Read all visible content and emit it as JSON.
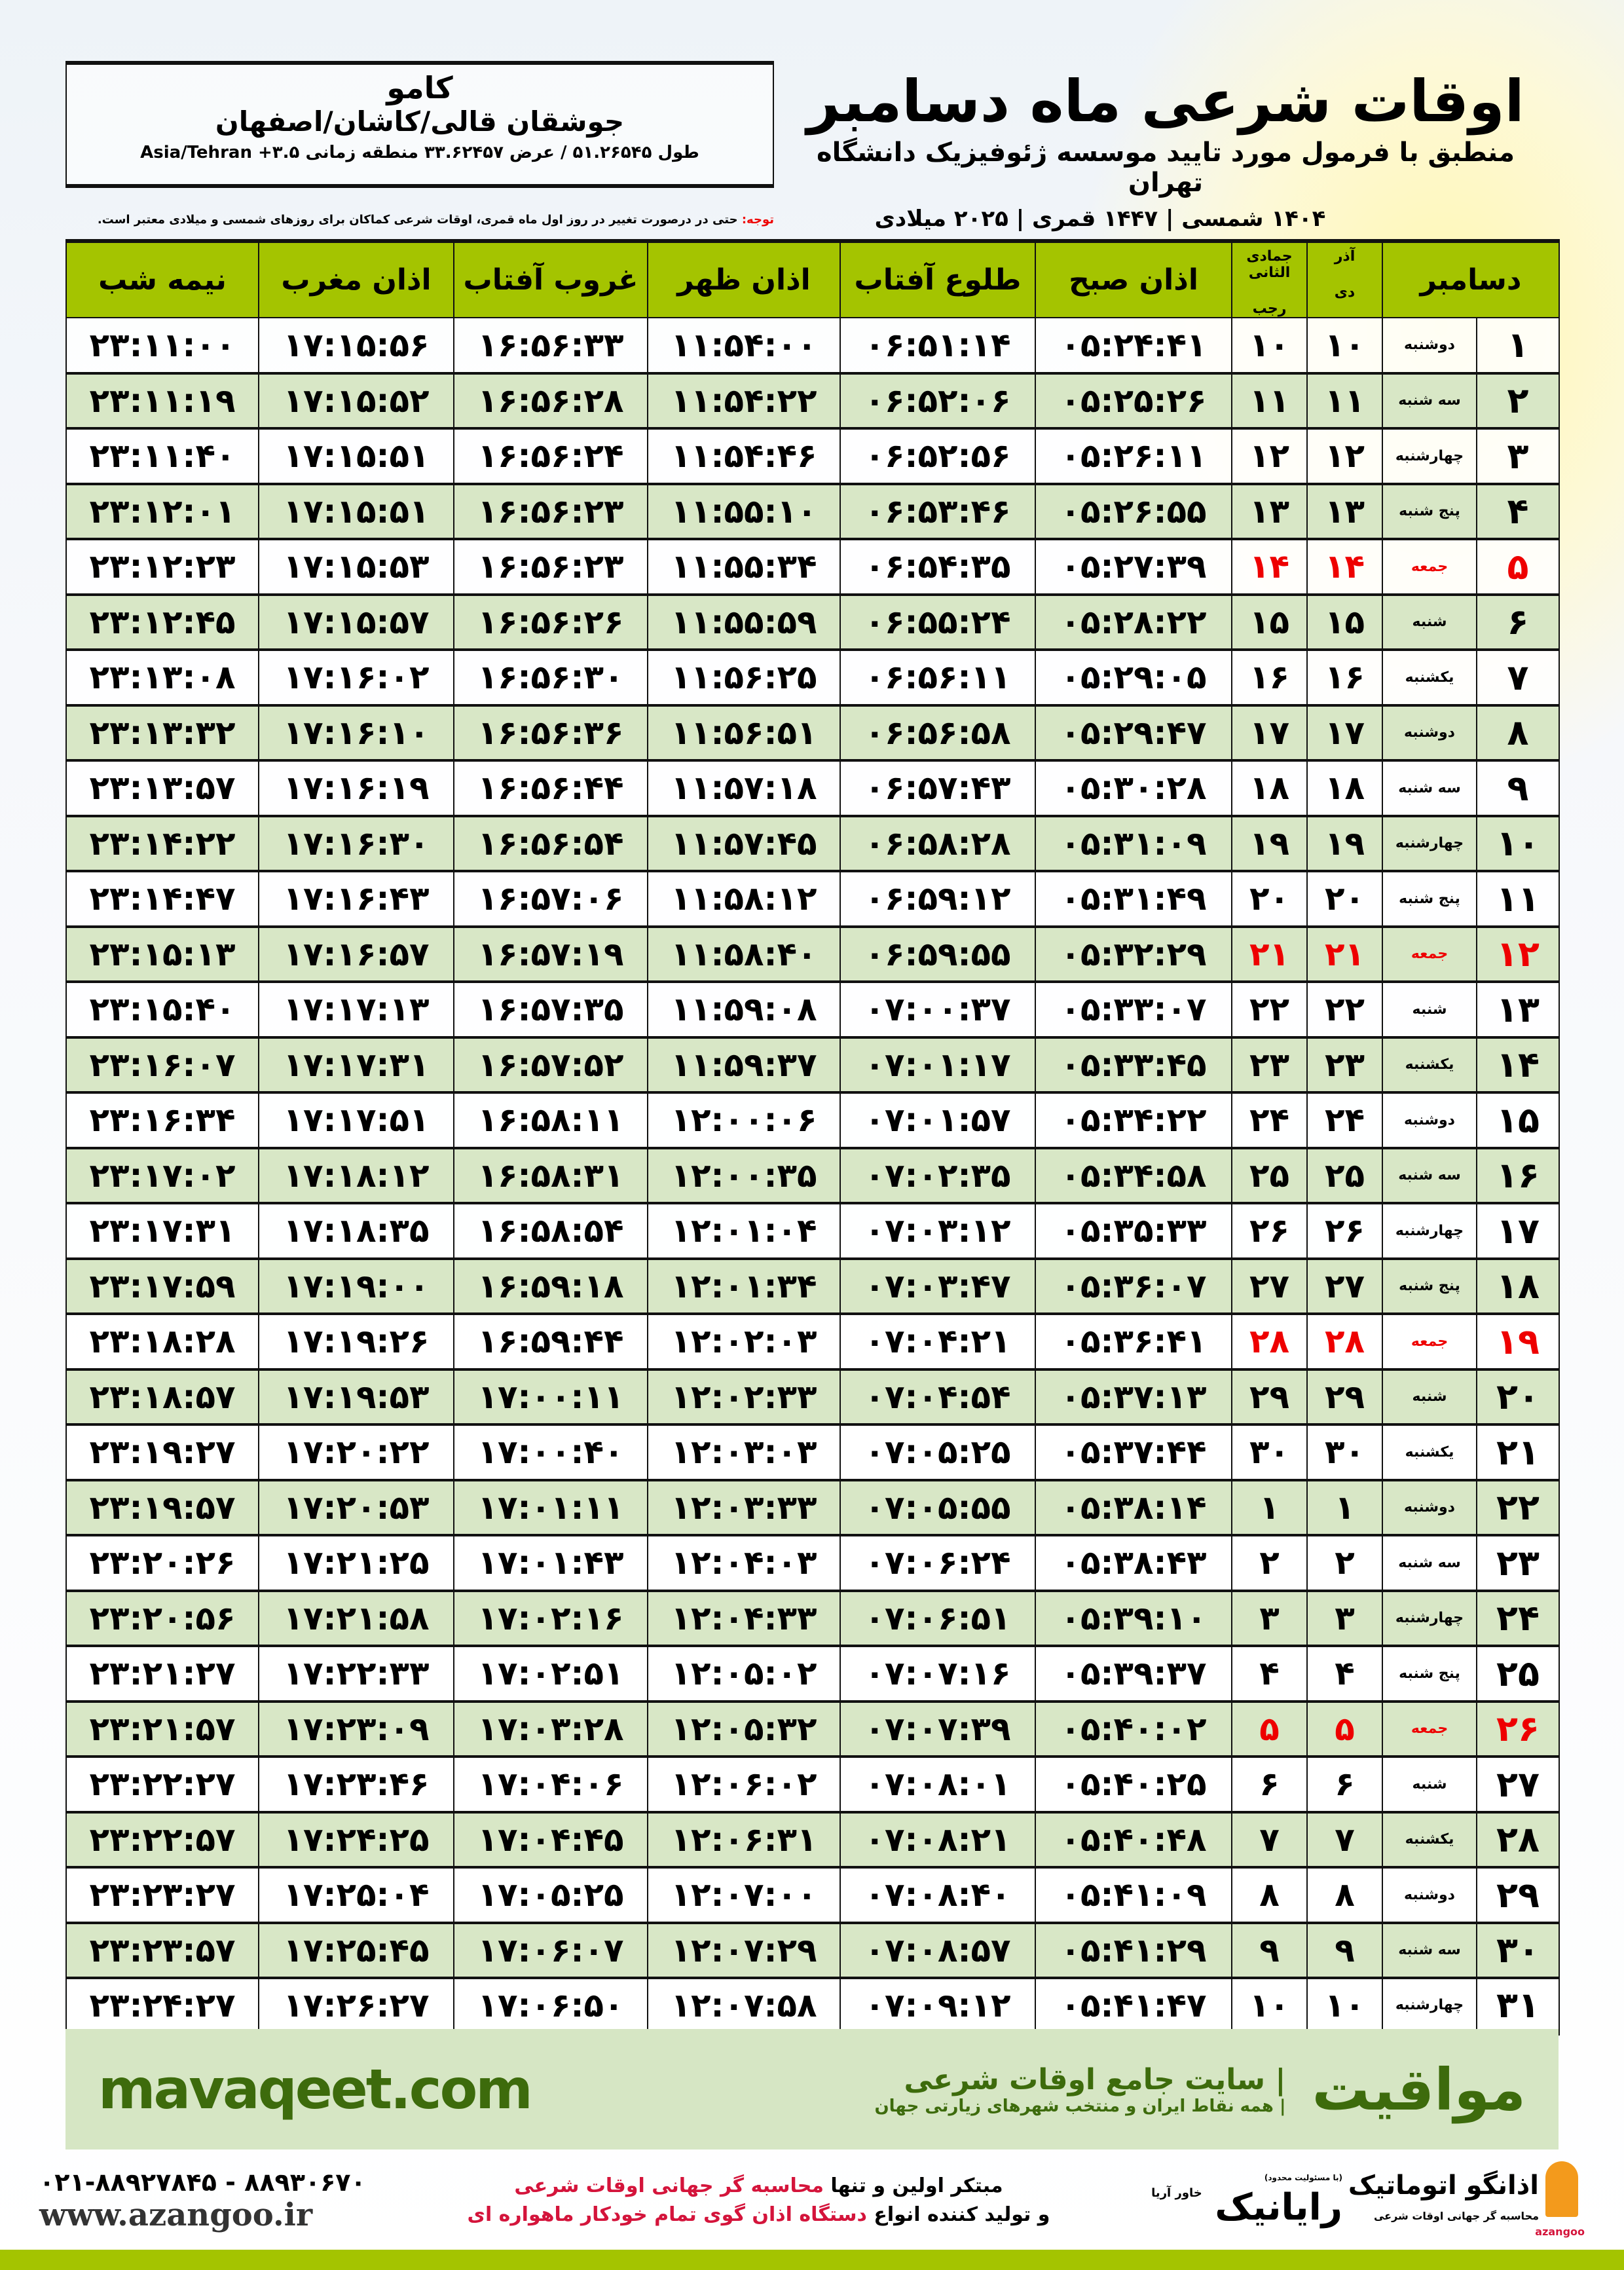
{
  "location": {
    "city": "کامو",
    "region": "جوشقان قالی/کاشان/اصفهان",
    "coords": "طول ۵۱.۲۶۵۴۵ / عرض ۳۳.۶۲۴۵۷ منطقه زمانی ۳.۵+ Asia/Tehran"
  },
  "header": {
    "title": "اوقات شرعی ماه دسامبر",
    "subtitle": "منطبق با فرمول مورد تایید موسسه ژئوفیزیک دانشگاه تهران",
    "years": "۱۴۰۴ شمسی | ۱۴۴۷ قمری | ۲۰۲۵ میلادی"
  },
  "note": {
    "label": "توجه:",
    "text": " حتی در درصورت تغییر در روز اول ماه قمری، اوقات شرعی کماکان برای روزهای شمسی و میلادی معتبر است."
  },
  "columns": {
    "month": "دسامبر",
    "shamsi_top": "آذر",
    "shamsi_bottom": "دی",
    "qamari_top": "جمادی الثانی",
    "qamari_bottom": "رجب",
    "sobh": "اذان صبح",
    "tolu": "طلوع آفتاب",
    "zohr": "اذان ظهر",
    "ghorub": "غروب آفتاب",
    "maghreb": "اذان مغرب",
    "nimeshab": "نیمه شب"
  },
  "colors": {
    "header_green": "#a4c400",
    "row_alt": "#d8e7c6",
    "friday": "#e00000",
    "band": "#d6e6c4",
    "band_text": "#3d6b0c"
  },
  "rows": [
    [
      "۱",
      "دوشنبه",
      "۱۰",
      "۱۰",
      "۰۵:۲۴:۴۱",
      "۰۶:۵۱:۱۴",
      "۱۱:۵۴:۰۰",
      "۱۶:۵۶:۳۳",
      "۱۷:۱۵:۵۶",
      "۲۳:۱۱:۰۰"
    ],
    [
      "۲",
      "سه شنبه",
      "۱۱",
      "۱۱",
      "۰۵:۲۵:۲۶",
      "۰۶:۵۲:۰۶",
      "۱۱:۵۴:۲۲",
      "۱۶:۵۶:۲۸",
      "۱۷:۱۵:۵۲",
      "۲۳:۱۱:۱۹"
    ],
    [
      "۳",
      "چهارشنبه",
      "۱۲",
      "۱۲",
      "۰۵:۲۶:۱۱",
      "۰۶:۵۲:۵۶",
      "۱۱:۵۴:۴۶",
      "۱۶:۵۶:۲۴",
      "۱۷:۱۵:۵۱",
      "۲۳:۱۱:۴۰"
    ],
    [
      "۴",
      "پنج شنبه",
      "۱۳",
      "۱۳",
      "۰۵:۲۶:۵۵",
      "۰۶:۵۳:۴۶",
      "۱۱:۵۵:۱۰",
      "۱۶:۵۶:۲۳",
      "۱۷:۱۵:۵۱",
      "۲۳:۱۲:۰۱"
    ],
    [
      "۵",
      "جمعه",
      "۱۴",
      "۱۴",
      "۰۵:۲۷:۳۹",
      "۰۶:۵۴:۳۵",
      "۱۱:۵۵:۳۴",
      "۱۶:۵۶:۲۳",
      "۱۷:۱۵:۵۳",
      "۲۳:۱۲:۲۳"
    ],
    [
      "۶",
      "شنبه",
      "۱۵",
      "۱۵",
      "۰۵:۲۸:۲۲",
      "۰۶:۵۵:۲۴",
      "۱۱:۵۵:۵۹",
      "۱۶:۵۶:۲۶",
      "۱۷:۱۵:۵۷",
      "۲۳:۱۲:۴۵"
    ],
    [
      "۷",
      "یکشنبه",
      "۱۶",
      "۱۶",
      "۰۵:۲۹:۰۵",
      "۰۶:۵۶:۱۱",
      "۱۱:۵۶:۲۵",
      "۱۶:۵۶:۳۰",
      "۱۷:۱۶:۰۲",
      "۲۳:۱۳:۰۸"
    ],
    [
      "۸",
      "دوشنبه",
      "۱۷",
      "۱۷",
      "۰۵:۲۹:۴۷",
      "۰۶:۵۶:۵۸",
      "۱۱:۵۶:۵۱",
      "۱۶:۵۶:۳۶",
      "۱۷:۱۶:۱۰",
      "۲۳:۱۳:۳۲"
    ],
    [
      "۹",
      "سه شنبه",
      "۱۸",
      "۱۸",
      "۰۵:۳۰:۲۸",
      "۰۶:۵۷:۴۳",
      "۱۱:۵۷:۱۸",
      "۱۶:۵۶:۴۴",
      "۱۷:۱۶:۱۹",
      "۲۳:۱۳:۵۷"
    ],
    [
      "۱۰",
      "چهارشنبه",
      "۱۹",
      "۱۹",
      "۰۵:۳۱:۰۹",
      "۰۶:۵۸:۲۸",
      "۱۱:۵۷:۴۵",
      "۱۶:۵۶:۵۴",
      "۱۷:۱۶:۳۰",
      "۲۳:۱۴:۲۲"
    ],
    [
      "۱۱",
      "پنج شنبه",
      "۲۰",
      "۲۰",
      "۰۵:۳۱:۴۹",
      "۰۶:۵۹:۱۲",
      "۱۱:۵۸:۱۲",
      "۱۶:۵۷:۰۶",
      "۱۷:۱۶:۴۳",
      "۲۳:۱۴:۴۷"
    ],
    [
      "۱۲",
      "جمعه",
      "۲۱",
      "۲۱",
      "۰۵:۳۲:۲۹",
      "۰۶:۵۹:۵۵",
      "۱۱:۵۸:۴۰",
      "۱۶:۵۷:۱۹",
      "۱۷:۱۶:۵۷",
      "۲۳:۱۵:۱۳"
    ],
    [
      "۱۳",
      "شنبه",
      "۲۲",
      "۲۲",
      "۰۵:۳۳:۰۷",
      "۰۷:۰۰:۳۷",
      "۱۱:۵۹:۰۸",
      "۱۶:۵۷:۳۵",
      "۱۷:۱۷:۱۳",
      "۲۳:۱۵:۴۰"
    ],
    [
      "۱۴",
      "یکشنبه",
      "۲۳",
      "۲۳",
      "۰۵:۳۳:۴۵",
      "۰۷:۰۱:۱۷",
      "۱۱:۵۹:۳۷",
      "۱۶:۵۷:۵۲",
      "۱۷:۱۷:۳۱",
      "۲۳:۱۶:۰۷"
    ],
    [
      "۱۵",
      "دوشنبه",
      "۲۴",
      "۲۴",
      "۰۵:۳۴:۲۲",
      "۰۷:۰۱:۵۷",
      "۱۲:۰۰:۰۶",
      "۱۶:۵۸:۱۱",
      "۱۷:۱۷:۵۱",
      "۲۳:۱۶:۳۴"
    ],
    [
      "۱۶",
      "سه شنبه",
      "۲۵",
      "۲۵",
      "۰۵:۳۴:۵۸",
      "۰۷:۰۲:۳۵",
      "۱۲:۰۰:۳۵",
      "۱۶:۵۸:۳۱",
      "۱۷:۱۸:۱۲",
      "۲۳:۱۷:۰۲"
    ],
    [
      "۱۷",
      "چهارشنبه",
      "۲۶",
      "۲۶",
      "۰۵:۳۵:۳۳",
      "۰۷:۰۳:۱۲",
      "۱۲:۰۱:۰۴",
      "۱۶:۵۸:۵۴",
      "۱۷:۱۸:۳۵",
      "۲۳:۱۷:۳۱"
    ],
    [
      "۱۸",
      "پنج شنبه",
      "۲۷",
      "۲۷",
      "۰۵:۳۶:۰۷",
      "۰۷:۰۳:۴۷",
      "۱۲:۰۱:۳۴",
      "۱۶:۵۹:۱۸",
      "۱۷:۱۹:۰۰",
      "۲۳:۱۷:۵۹"
    ],
    [
      "۱۹",
      "جمعه",
      "۲۸",
      "۲۸",
      "۰۵:۳۶:۴۱",
      "۰۷:۰۴:۲۱",
      "۱۲:۰۲:۰۳",
      "۱۶:۵۹:۴۴",
      "۱۷:۱۹:۲۶",
      "۲۳:۱۸:۲۸"
    ],
    [
      "۲۰",
      "شنبه",
      "۲۹",
      "۲۹",
      "۰۵:۳۷:۱۳",
      "۰۷:۰۴:۵۴",
      "۱۲:۰۲:۳۳",
      "۱۷:۰۰:۱۱",
      "۱۷:۱۹:۵۳",
      "۲۳:۱۸:۵۷"
    ],
    [
      "۲۱",
      "یکشنبه",
      "۳۰",
      "۳۰",
      "۰۵:۳۷:۴۴",
      "۰۷:۰۵:۲۵",
      "۱۲:۰۳:۰۳",
      "۱۷:۰۰:۴۰",
      "۱۷:۲۰:۲۲",
      "۲۳:۱۹:۲۷"
    ],
    [
      "۲۲",
      "دوشنبه",
      "۱",
      "۱",
      "۰۵:۳۸:۱۴",
      "۰۷:۰۵:۵۵",
      "۱۲:۰۳:۳۳",
      "۱۷:۰۱:۱۱",
      "۱۷:۲۰:۵۳",
      "۲۳:۱۹:۵۷"
    ],
    [
      "۲۳",
      "سه شنبه",
      "۲",
      "۲",
      "۰۵:۳۸:۴۳",
      "۰۷:۰۶:۲۴",
      "۱۲:۰۴:۰۳",
      "۱۷:۰۱:۴۳",
      "۱۷:۲۱:۲۵",
      "۲۳:۲۰:۲۶"
    ],
    [
      "۲۴",
      "چهارشنبه",
      "۳",
      "۳",
      "۰۵:۳۹:۱۰",
      "۰۷:۰۶:۵۱",
      "۱۲:۰۴:۳۳",
      "۱۷:۰۲:۱۶",
      "۱۷:۲۱:۵۸",
      "۲۳:۲۰:۵۶"
    ],
    [
      "۲۵",
      "پنج شنبه",
      "۴",
      "۴",
      "۰۵:۳۹:۳۷",
      "۰۷:۰۷:۱۶",
      "۱۲:۰۵:۰۲",
      "۱۷:۰۲:۵۱",
      "۱۷:۲۲:۳۳",
      "۲۳:۲۱:۲۷"
    ],
    [
      "۲۶",
      "جمعه",
      "۵",
      "۵",
      "۰۵:۴۰:۰۲",
      "۰۷:۰۷:۳۹",
      "۱۲:۰۵:۳۲",
      "۱۷:۰۳:۲۸",
      "۱۷:۲۳:۰۹",
      "۲۳:۲۱:۵۷"
    ],
    [
      "۲۷",
      "شنبه",
      "۶",
      "۶",
      "۰۵:۴۰:۲۵",
      "۰۷:۰۸:۰۱",
      "۱۲:۰۶:۰۲",
      "۱۷:۰۴:۰۶",
      "۱۷:۲۳:۴۶",
      "۲۳:۲۲:۲۷"
    ],
    [
      "۲۸",
      "یکشنبه",
      "۷",
      "۷",
      "۰۵:۴۰:۴۸",
      "۰۷:۰۸:۲۱",
      "۱۲:۰۶:۳۱",
      "۱۷:۰۴:۴۵",
      "۱۷:۲۴:۲۵",
      "۲۳:۲۲:۵۷"
    ],
    [
      "۲۹",
      "دوشنبه",
      "۸",
      "۸",
      "۰۵:۴۱:۰۹",
      "۰۷:۰۸:۴۰",
      "۱۲:۰۷:۰۰",
      "۱۷:۰۵:۲۵",
      "۱۷:۲۵:۰۴",
      "۲۳:۲۳:۲۷"
    ],
    [
      "۳۰",
      "سه شنبه",
      "۹",
      "۹",
      "۰۵:۴۱:۲۹",
      "۰۷:۰۸:۵۷",
      "۱۲:۰۷:۲۹",
      "۱۷:۰۶:۰۷",
      "۱۷:۲۵:۴۵",
      "۲۳:۲۳:۵۷"
    ],
    [
      "۳۱",
      "چهارشنبه",
      "۱۰",
      "۱۰",
      "۰۵:۴۱:۴۷",
      "۰۷:۰۹:۱۲",
      "۱۲:۰۷:۵۸",
      "۱۷:۰۶:۵۰",
      "۱۷:۲۶:۲۷",
      "۲۳:۲۴:۲۷"
    ]
  ],
  "friday_label": "جمعه",
  "band": {
    "site": "mavaqeet.com",
    "brand": "مواقیت",
    "slogan": "| سایت جامع اوقات شرعی",
    "slogan2": "| همه نقاط ایران و منتخب شهرهای زیارتی جهان"
  },
  "footer": {
    "phone": "۰۲۱-۸۸۹۲۷۸۴۵ - ۸۸۹۳۰۶۷۰",
    "website": "www.azangoo.ir",
    "line1_a": "مبتکر اولین و تنها ",
    "line1_b": "محاسبه گر جهانی اوقات شرعی",
    "line2_a": "و تولید کننده انواع ",
    "line2_b": "دستگاه اذان گوی تمام خودکار ماهواره ای",
    "rayanik": "رایانیک",
    "rayanik_small": "خاور آریا",
    "rayanik_tag": "(با مسئولیت محدود)",
    "azangoo_name": "اذانگو اتوماتیک",
    "azangoo_tag": "محاسبه گر جهانی اوقات شرعی",
    "azangoo_en": "azangoo"
  }
}
